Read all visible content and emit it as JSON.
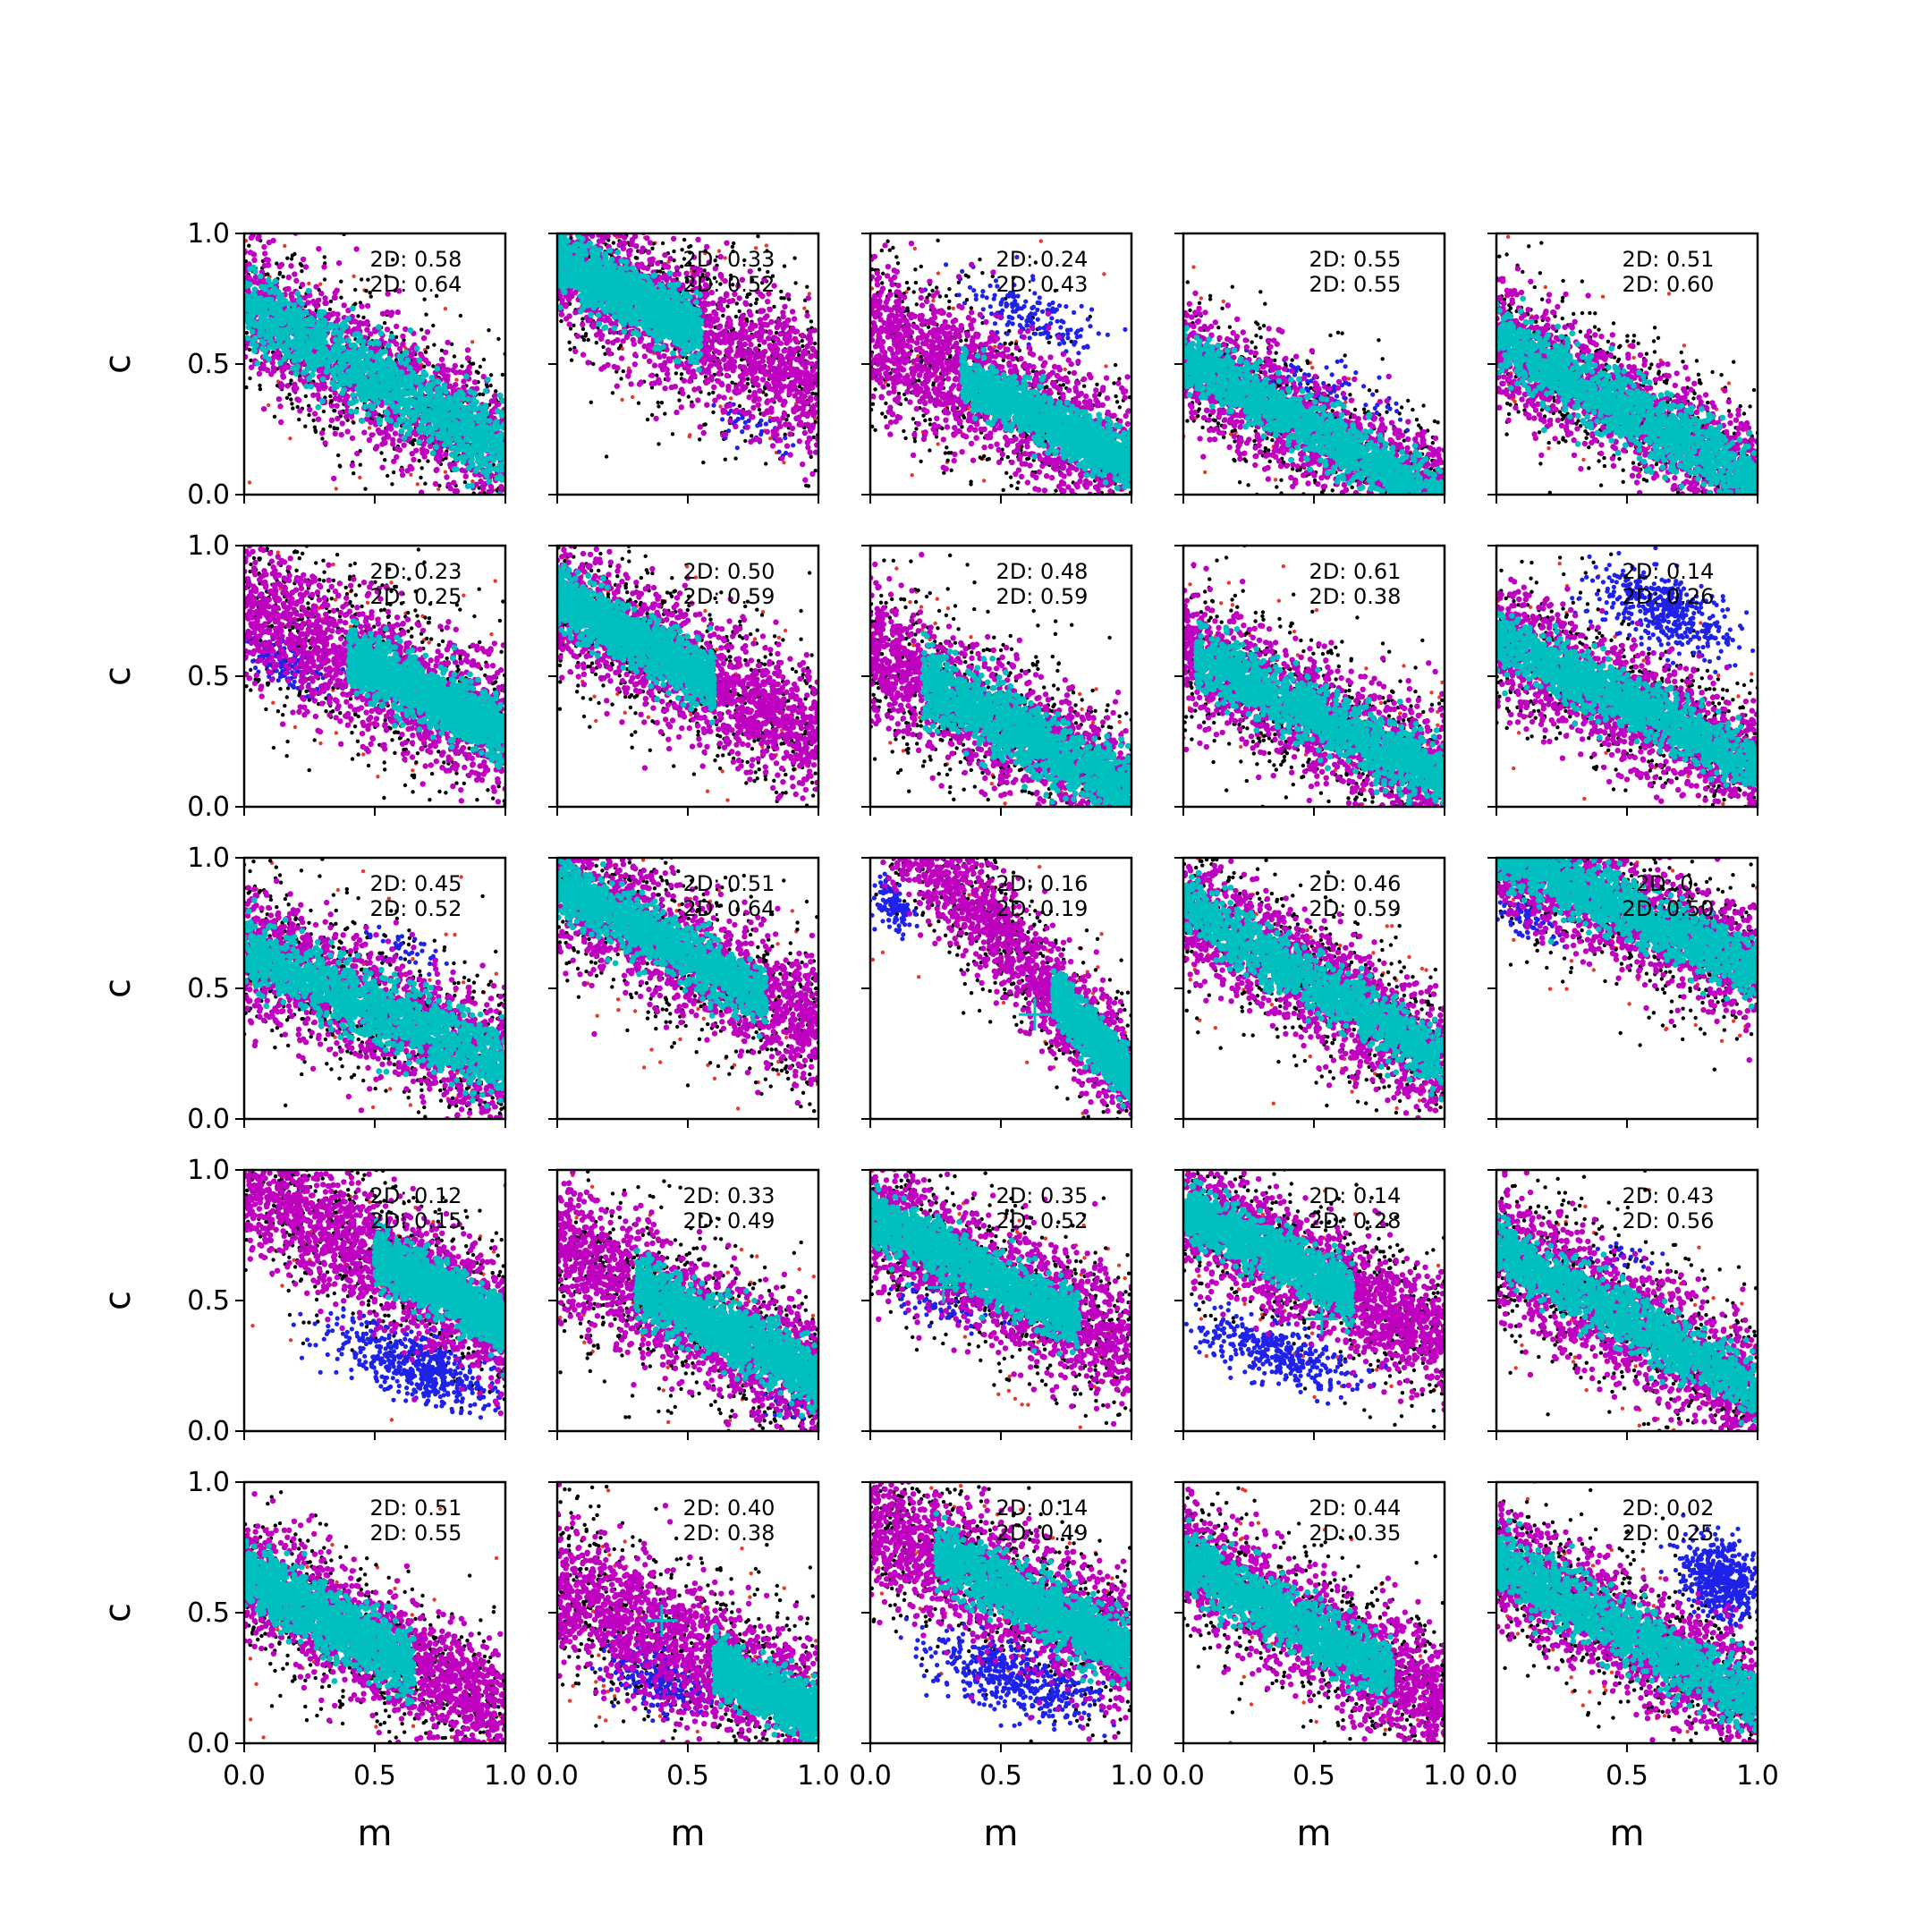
{
  "figure": {
    "layout": "5x5 grid of scatter panels, shared axes",
    "colors": {
      "outer_points": "#000000",
      "outlier_points": "#e8392b",
      "detected_points": "#1f22e8",
      "band_points": "#c000c0",
      "core_points": "#00bfbf",
      "marker": "#00bfbf"
    },
    "xlabel": "m",
    "ylabel": "c",
    "xlim": [
      0.0,
      1.0
    ],
    "ylim": [
      0.0,
      1.0
    ],
    "x_ticks": [
      "0.0",
      "0.5",
      "1.0"
    ],
    "y_ticks": [
      "0.0",
      "0.5",
      "1.0"
    ]
  },
  "chart_data": {
    "type": "scatter",
    "rows": 5,
    "cols": 5,
    "xlabel": "m",
    "ylabel": "c",
    "xlim": [
      0,
      1
    ],
    "ylim": [
      0,
      1
    ],
    "grid": false,
    "panels": [
      {
        "row": 0,
        "col": 0,
        "labels": [
          "2D: 0.58",
          "2D: 0.64"
        ],
        "core": {
          "slope": -0.55,
          "intercept": 0.72,
          "width": 0.13,
          "xmin": 0.0,
          "xmax": 1.0
        },
        "band_width": 0.32,
        "blue": null,
        "marker": null
      },
      {
        "row": 0,
        "col": 1,
        "labels": [
          "2D: 0.33",
          "2D: 0.52"
        ],
        "core": {
          "slope": -0.5,
          "intercept": 0.9,
          "width": 0.1,
          "xmin": 0.0,
          "xmax": 0.55
        },
        "band_width": 0.35,
        "blue": {
          "cx": 0.75,
          "cy": 0.25,
          "rx": 0.12,
          "ry": 0.05,
          "n": 40
        },
        "marker": {
          "x": 0.5,
          "y": 0.67
        }
      },
      {
        "row": 0,
        "col": 2,
        "labels": [
          "2D: 0.24",
          "2D: 0.43"
        ],
        "core": {
          "slope": -0.5,
          "intercept": 0.62,
          "width": 0.09,
          "xmin": 0.35,
          "xmax": 1.0
        },
        "band_width": 0.35,
        "blue": {
          "cx": 0.62,
          "cy": 0.68,
          "rx": 0.25,
          "ry": 0.07,
          "n": 160
        },
        "marker": null
      },
      {
        "row": 0,
        "col": 3,
        "labels": [
          "2D: 0.55",
          "2D: 0.55"
        ],
        "core": {
          "slope": -0.55,
          "intercept": 0.52,
          "width": 0.1,
          "xmin": 0.0,
          "xmax": 1.0
        },
        "band_width": 0.28,
        "blue": {
          "cx": 0.55,
          "cy": 0.42,
          "rx": 0.25,
          "ry": 0.06,
          "n": 70
        },
        "marker": null
      },
      {
        "row": 0,
        "col": 4,
        "labels": [
          "2D: 0.51",
          "2D: 0.60"
        ],
        "core": {
          "slope": -0.55,
          "intercept": 0.6,
          "width": 0.12,
          "xmin": 0.0,
          "xmax": 1.0
        },
        "band_width": 0.3,
        "blue": null,
        "marker": null
      },
      {
        "row": 1,
        "col": 0,
        "labels": [
          "2D: 0.23",
          "2D: 0.25"
        ],
        "core": {
          "slope": -0.5,
          "intercept": 0.78,
          "width": 0.1,
          "xmin": 0.4,
          "xmax": 1.0
        },
        "band_width": 0.35,
        "blue": {
          "cx": 0.15,
          "cy": 0.55,
          "rx": 0.15,
          "ry": 0.06,
          "n": 130
        },
        "marker": {
          "x": 0.48,
          "y": 0.57
        }
      },
      {
        "row": 1,
        "col": 1,
        "labels": [
          "2D: 0.50",
          "2D: 0.59"
        ],
        "core": {
          "slope": -0.55,
          "intercept": 0.8,
          "width": 0.1,
          "xmin": 0.0,
          "xmax": 0.6
        },
        "band_width": 0.32,
        "blue": null,
        "marker": null
      },
      {
        "row": 1,
        "col": 2,
        "labels": [
          "2D: 0.48",
          "2D: 0.59"
        ],
        "core": {
          "slope": -0.55,
          "intercept": 0.6,
          "width": 0.12,
          "xmin": 0.2,
          "xmax": 1.0
        },
        "band_width": 0.32,
        "blue": null,
        "marker": null
      },
      {
        "row": 1,
        "col": 3,
        "labels": [
          "2D: 0.61",
          "2D: 0.38"
        ],
        "core": {
          "slope": -0.5,
          "intercept": 0.6,
          "width": 0.11,
          "xmin": 0.05,
          "xmax": 1.0
        },
        "band_width": 0.3,
        "blue": null,
        "marker": null
      },
      {
        "row": 1,
        "col": 4,
        "labels": [
          "2D: 0.14",
          "2D: 0.26"
        ],
        "core": {
          "slope": -0.5,
          "intercept": 0.65,
          "width": 0.1,
          "xmin": 0.0,
          "xmax": 1.0
        },
        "band_width": 0.3,
        "blue": {
          "cx": 0.65,
          "cy": 0.75,
          "rx": 0.25,
          "ry": 0.09,
          "n": 420
        },
        "marker": null
      },
      {
        "row": 2,
        "col": 0,
        "labels": [
          "2D: 0.45",
          "2D: 0.52"
        ],
        "core": {
          "slope": -0.45,
          "intercept": 0.65,
          "width": 0.12,
          "xmin": 0.0,
          "xmax": 1.0
        },
        "band_width": 0.32,
        "blue": {
          "cx": 0.62,
          "cy": 0.65,
          "rx": 0.15,
          "ry": 0.04,
          "n": 35
        },
        "marker": null
      },
      {
        "row": 2,
        "col": 1,
        "labels": [
          "2D: 0.51",
          "2D: 0.64"
        ],
        "core": {
          "slope": -0.55,
          "intercept": 0.9,
          "width": 0.1,
          "xmin": 0.0,
          "xmax": 0.8
        },
        "band_width": 0.32,
        "blue": null,
        "marker": null
      },
      {
        "row": 2,
        "col": 2,
        "labels": [
          "2D: 0.16",
          "2D: 0.19"
        ],
        "core": {
          "slope": -1.1,
          "intercept": 1.25,
          "width": 0.08,
          "xmin": 0.7,
          "xmax": 1.0
        },
        "band_width": 0.3,
        "blue": {
          "cx": 0.08,
          "cy": 0.82,
          "rx": 0.07,
          "ry": 0.06,
          "n": 110
        },
        "marker": {
          "x": 0.63,
          "y": 0.4
        }
      },
      {
        "row": 2,
        "col": 3,
        "labels": [
          "2D: 0.46",
          "2D: 0.59"
        ],
        "core": {
          "slope": -0.6,
          "intercept": 0.82,
          "width": 0.1,
          "xmin": 0.0,
          "xmax": 1.0
        },
        "band_width": 0.3,
        "blue": null,
        "marker": null
      },
      {
        "row": 2,
        "col": 4,
        "labels": [
          "2D: 0.",
          "2D: 0.50"
        ],
        "core": {
          "slope": -0.45,
          "intercept": 1.02,
          "width": 0.1,
          "xmin": 0.0,
          "xmax": 1.0
        },
        "band_width": 0.28,
        "blue": {
          "cx": 0.12,
          "cy": 0.76,
          "rx": 0.1,
          "ry": 0.05,
          "n": 80
        },
        "marker": null
      },
      {
        "row": 3,
        "col": 0,
        "labels": [
          "2D: 0.12",
          "2D: 0.15"
        ],
        "core": {
          "slope": -0.55,
          "intercept": 0.95,
          "width": 0.09,
          "xmin": 0.5,
          "xmax": 1.0
        },
        "band_width": 0.32,
        "blue": {
          "cx": 0.65,
          "cy": 0.25,
          "rx": 0.3,
          "ry": 0.08,
          "n": 520
        },
        "marker": {
          "x": 0.58,
          "y": 0.69
        }
      },
      {
        "row": 3,
        "col": 1,
        "labels": [
          "2D: 0.33",
          "2D: 0.49"
        ],
        "core": {
          "slope": -0.5,
          "intercept": 0.7,
          "width": 0.11,
          "xmin": 0.3,
          "xmax": 1.0
        },
        "band_width": 0.33,
        "blue": {
          "cx": 0.85,
          "cy": 0.1,
          "rx": 0.1,
          "ry": 0.04,
          "n": 30
        },
        "marker": null
      },
      {
        "row": 3,
        "col": 2,
        "labels": [
          "2D: 0.35",
          "2D: 0.52"
        ],
        "core": {
          "slope": -0.5,
          "intercept": 0.82,
          "width": 0.1,
          "xmin": 0.0,
          "xmax": 0.8
        },
        "band_width": 0.3,
        "blue": {
          "cx": 0.28,
          "cy": 0.48,
          "rx": 0.2,
          "ry": 0.05,
          "n": 70
        },
        "marker": {
          "x": 0.28,
          "y": 0.55
        }
      },
      {
        "row": 3,
        "col": 3,
        "labels": [
          "2D: 0.14",
          "2D: 0.28"
        ],
        "core": {
          "slope": -0.5,
          "intercept": 0.85,
          "width": 0.09,
          "xmin": 0.0,
          "xmax": 0.65
        },
        "band_width": 0.3,
        "blue": {
          "cx": 0.35,
          "cy": 0.3,
          "rx": 0.3,
          "ry": 0.07,
          "n": 360
        },
        "marker": {
          "x": 0.53,
          "y": 0.43
        }
      },
      {
        "row": 3,
        "col": 4,
        "labels": [
          "2D: 0.43",
          "2D: 0.56"
        ],
        "core": {
          "slope": -0.55,
          "intercept": 0.7,
          "width": 0.1,
          "xmin": 0.0,
          "xmax": 1.0
        },
        "band_width": 0.32,
        "blue": {
          "cx": 0.5,
          "cy": 0.65,
          "rx": 0.15,
          "ry": 0.04,
          "n": 25
        },
        "marker": null
      },
      {
        "row": 4,
        "col": 0,
        "labels": [
          "2D: 0.51",
          "2D: 0.55"
        ],
        "core": {
          "slope": -0.55,
          "intercept": 0.65,
          "width": 0.11,
          "xmin": 0.0,
          "xmax": 0.65
        },
        "band_width": 0.3,
        "blue": null,
        "marker": null
      },
      {
        "row": 4,
        "col": 1,
        "labels": [
          "2D: 0.40",
          "2D: 0.38"
        ],
        "core": {
          "slope": -0.5,
          "intercept": 0.6,
          "width": 0.09,
          "xmin": 0.6,
          "xmax": 1.0
        },
        "band_width": 0.35,
        "blue": {
          "cx": 0.4,
          "cy": 0.25,
          "rx": 0.2,
          "ry": 0.08,
          "n": 260
        },
        "marker": {
          "x": 0.4,
          "y": 0.47
        }
      },
      {
        "row": 4,
        "col": 2,
        "labels": [
          "2D: 0.14",
          "2D: 0.49"
        ],
        "core": {
          "slope": -0.5,
          "intercept": 0.85,
          "width": 0.11,
          "xmin": 0.25,
          "xmax": 1.0
        },
        "band_width": 0.32,
        "blue": {
          "cx": 0.55,
          "cy": 0.25,
          "rx": 0.3,
          "ry": 0.08,
          "n": 480
        },
        "marker": null
      },
      {
        "row": 4,
        "col": 3,
        "labels": [
          "2D: 0.44",
          "2D: 0.35"
        ],
        "core": {
          "slope": -0.55,
          "intercept": 0.7,
          "width": 0.1,
          "xmin": 0.0,
          "xmax": 0.8
        },
        "band_width": 0.3,
        "blue": null,
        "marker": null
      },
      {
        "row": 4,
        "col": 4,
        "labels": [
          "2D: 0.02",
          "2D: 0.25"
        ],
        "core": {
          "slope": -0.55,
          "intercept": 0.7,
          "width": 0.11,
          "xmin": 0.0,
          "xmax": 1.0
        },
        "band_width": 0.3,
        "blue": {
          "cx": 0.86,
          "cy": 0.63,
          "rx": 0.14,
          "ry": 0.1,
          "n": 520
        },
        "marker": null
      }
    ]
  }
}
